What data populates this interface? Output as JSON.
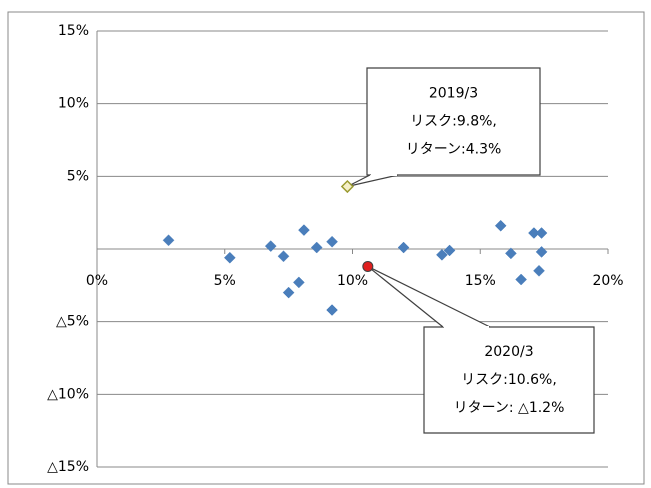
{
  "chart_data": {
    "type": "scatter",
    "x": [
      2.8,
      5.2,
      6.8,
      7.3,
      7.5,
      7.9,
      8.1,
      8.6,
      9.2,
      9.2,
      9.8,
      10.6,
      12.0,
      13.5,
      13.8,
      15.8,
      16.2,
      16.6,
      17.1,
      17.4,
      17.4,
      17.3
    ],
    "values": [
      0.6,
      -0.6,
      0.2,
      -0.5,
      -3.0,
      -2.3,
      1.3,
      0.1,
      0.5,
      -4.2,
      4.3,
      -1.2,
      0.1,
      -0.4,
      -0.1,
      1.6,
      -0.3,
      -2.1,
      1.1,
      1.1,
      -0.2,
      -1.5
    ],
    "color": "#4a7ebb",
    "point_colors": [
      "#4a7ebb",
      "#4a7ebb",
      "#4a7ebb",
      "#4a7ebb",
      "#4a7ebb",
      "#4a7ebb",
      "#4a7ebb",
      "#4a7ebb",
      "#4a7ebb",
      "#4a7ebb",
      "#f5f0c8",
      "#e02020",
      "#4a7ebb",
      "#4a7ebb",
      "#4a7ebb",
      "#4a7ebb",
      "#4a7ebb",
      "#4a7ebb",
      "#4a7ebb",
      "#4a7ebb",
      "#4a7ebb",
      "#4a7ebb"
    ],
    "markers": [
      "diamond",
      "diamond",
      "diamond",
      "diamond",
      "diamond",
      "diamond",
      "diamond",
      "diamond",
      "diamond",
      "diamond",
      "diamond",
      "circle",
      "diamond",
      "diamond",
      "diamond",
      "diamond",
      "diamond",
      "diamond",
      "diamond",
      "diamond",
      "diamond",
      "diamond"
    ],
    "xlim": [
      0,
      20
    ],
    "xticks": [
      {
        "value": 0,
        "label": "0%"
      },
      {
        "value": 5,
        "label": "5%"
      },
      {
        "value": 10,
        "label": "10%"
      },
      {
        "value": 15,
        "label": "15%"
      },
      {
        "value": 20,
        "label": "20%"
      }
    ],
    "ylim": [
      -15,
      15
    ],
    "yticks": [
      {
        "value": 15,
        "label": "15%"
      },
      {
        "value": 10,
        "label": "10%"
      },
      {
        "value": 5,
        "label": "5%"
      },
      {
        "value": -5,
        "label": "△5%"
      },
      {
        "value": -10,
        "label": "△10%"
      },
      {
        "value": -15,
        "label": "△15%"
      }
    ],
    "grid": true,
    "annotations": [
      {
        "lines": [
          "2019/3",
          "リスク:9.8%,",
          "リターン:4.3%"
        ]
      },
      {
        "lines": [
          "2020/3",
          "リスク:10.6%,",
          "リターン: △1.2%"
        ]
      }
    ]
  }
}
